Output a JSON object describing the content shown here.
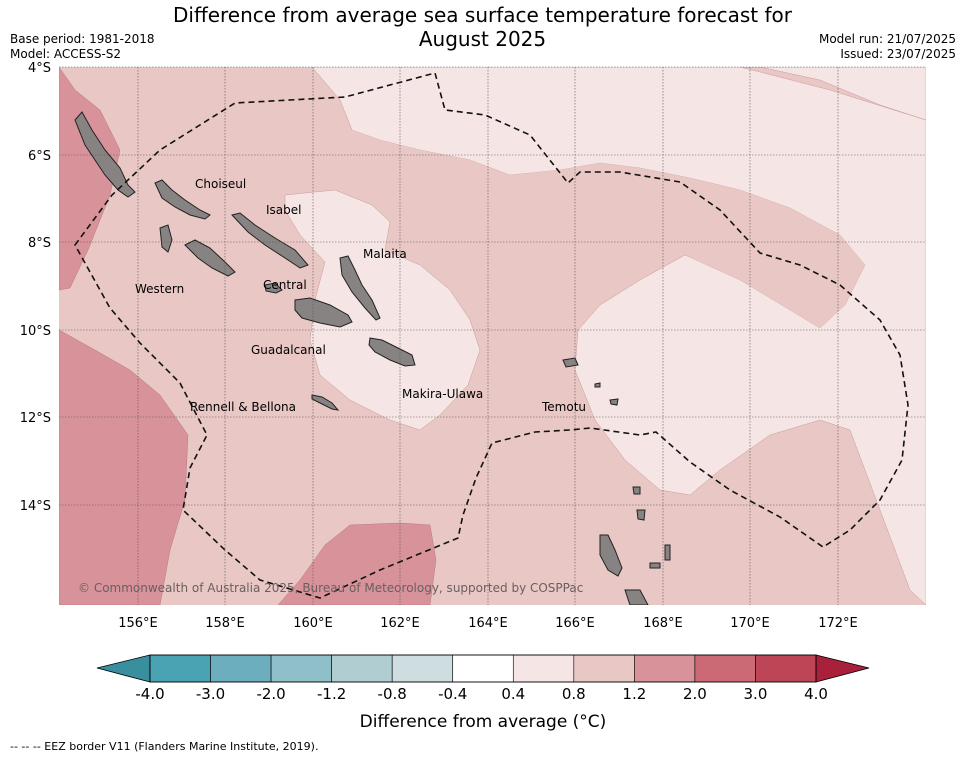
{
  "title_line1": "Difference from average sea surface temperature forecast for",
  "title_line2": "August 2025",
  "meta_left": {
    "base_period": "Base period: 1981-2018",
    "model": "Model: ACCESS-S2"
  },
  "meta_right": {
    "model_run": "Model run: 21/07/2025",
    "issued": "Issued: 23/07/2025"
  },
  "lat_ticks": [
    "4°S",
    "6°S",
    "8°S",
    "10°S",
    "12°S",
    "14°S"
  ],
  "lon_ticks": [
    "156°E",
    "158°E",
    "160°E",
    "162°E",
    "164°E",
    "166°E",
    "168°E",
    "170°E",
    "172°E"
  ],
  "provinces": [
    "Choiseul",
    "Isabel",
    "Malaita",
    "Western",
    "Central",
    "Guadalcanal",
    "Makira-Ulawa",
    "Rennell & Bellona",
    "Temotu"
  ],
  "copyright": "© Commonwealth of Australia 2025, Bureau of Meteorology, supported by COSPPac",
  "colorbar": {
    "label": "Difference from average (°C)",
    "ticks": [
      "-4.0",
      "-3.0",
      "-2.0",
      "-1.2",
      "-0.8",
      "-0.4",
      "0.4",
      "0.8",
      "1.2",
      "2.0",
      "3.0",
      "4.0"
    ],
    "colors": [
      "#4aa3b3",
      "#6caebd",
      "#8fbfc8",
      "#b0cdd2",
      "#cddde0",
      "#ffffff",
      "#f5e6e5",
      "#e8c7c4",
      "#d8939a",
      "#cb6a75",
      "#bd4656"
    ],
    "under_color": "#3a8f9e",
    "over_color": "#a8203a"
  },
  "footer": "--  --  -- EEZ border V11 (Flanders Marine Institute, 2019)."
}
